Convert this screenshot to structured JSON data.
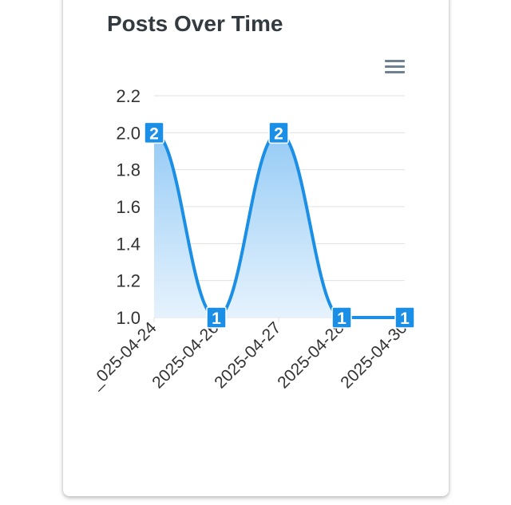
{
  "card": {
    "title": "Posts Over Time"
  },
  "toolbar": {
    "menu_icon": "hamburger-menu-icon"
  },
  "colors": {
    "series": "#1b8fe6",
    "area_top": "#8fc8f5",
    "area_bottom": "#e3f1fd",
    "grid": "#e0e0e0",
    "axis_text": "#333333",
    "label_bg": "#1b8fe6",
    "label_text": "#ffffff"
  },
  "chart_data": {
    "type": "area",
    "title": "Posts Over Time",
    "xlabel": "",
    "ylabel": "",
    "x": [
      "2025-04-24",
      "2025-04-26",
      "2025-04-27",
      "2025-04-28",
      "2025-04-30"
    ],
    "x_tick_labels": [
      "_025-04-24",
      "2025-04-26",
      "2025-04-27",
      "2025-04-28",
      "2025-04-30"
    ],
    "series": [
      {
        "values": [
          2,
          1,
          2,
          1,
          1
        ]
      }
    ],
    "ylim": [
      1.0,
      2.2
    ],
    "y_ticks": [
      "1.0",
      "1.2",
      "1.4",
      "1.6",
      "1.8",
      "2.0",
      "2.2"
    ],
    "data_labels": [
      "2",
      "1",
      "2",
      "1",
      "1"
    ],
    "grid": true,
    "curve": "smooth"
  }
}
